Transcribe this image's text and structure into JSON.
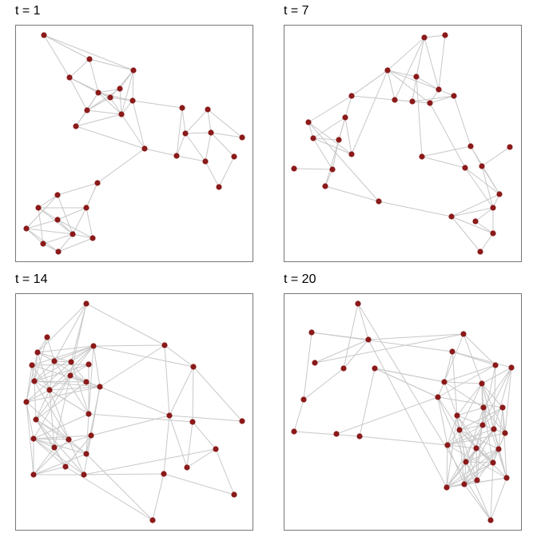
{
  "panels": [
    {
      "title": "t = 1"
    },
    {
      "title": "t = 7"
    },
    {
      "title": "t = 14"
    },
    {
      "title": "t = 20"
    }
  ]
}
